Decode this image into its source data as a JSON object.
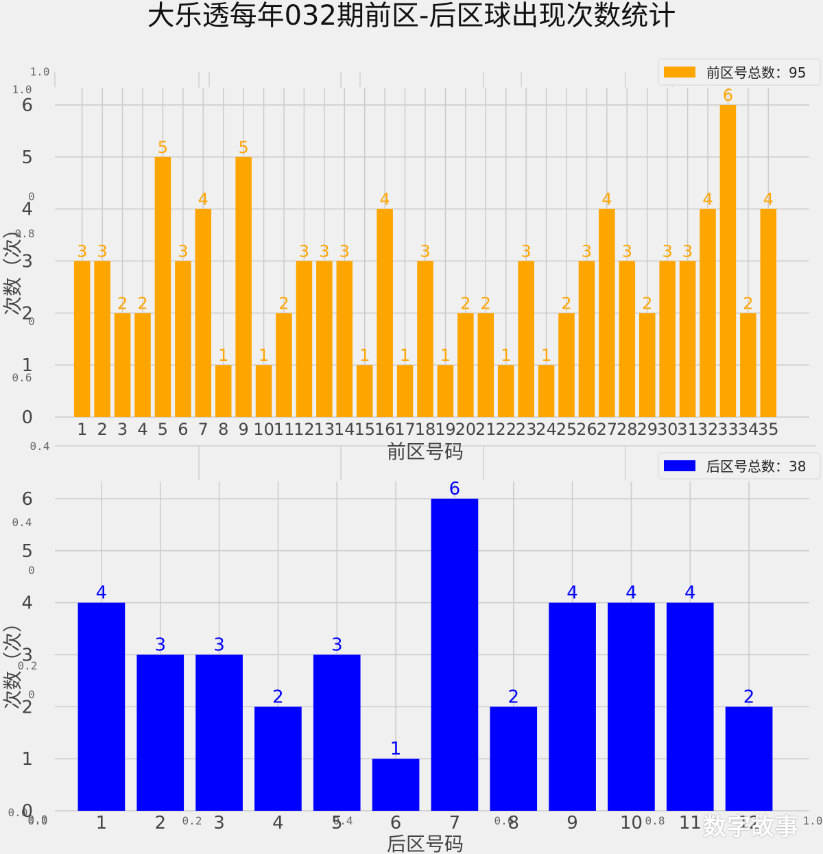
{
  "figure": {
    "title": "大乐透每年032期前区-后区球出现次数统计",
    "watermark": "数字故事",
    "ghost_ticks_x": [
      "0.0",
      "0.2",
      "0.4",
      "0.6",
      "0.8",
      "1.0"
    ],
    "ghost_ticks_y": [
      "1.0",
      "1.0",
      "0",
      "0.8",
      "0",
      "0.6",
      "0.4",
      "0.4",
      "0",
      "0.2",
      "0",
      "0.0",
      "0.0"
    ]
  },
  "chart_data": [
    {
      "type": "bar",
      "title": "",
      "xlabel": "前区号码",
      "ylabel": "次数（次）",
      "categories": [
        "1",
        "2",
        "3",
        "4",
        "5",
        "6",
        "7",
        "8",
        "9",
        "10",
        "11",
        "12",
        "13",
        "14",
        "15",
        "16",
        "17",
        "18",
        "19",
        "20",
        "21",
        "22",
        "23",
        "24",
        "25",
        "26",
        "27",
        "28",
        "29",
        "30",
        "31",
        "32",
        "33",
        "34",
        "35"
      ],
      "series": [
        {
          "name": "前区号总数：95",
          "color": "#FFA500",
          "values": [
            3,
            3,
            2,
            2,
            5,
            3,
            4,
            1,
            5,
            1,
            2,
            3,
            3,
            3,
            1,
            4,
            1,
            3,
            1,
            2,
            2,
            1,
            3,
            1,
            2,
            3,
            4,
            3,
            2,
            3,
            3,
            4,
            6,
            2,
            4
          ]
        }
      ],
      "yticks": [
        0,
        1,
        2,
        3,
        4,
        5,
        6
      ],
      "ylim": [
        0,
        6.3
      ],
      "grid": true,
      "legend": "top-right"
    },
    {
      "type": "bar",
      "title": "",
      "xlabel": "后区号码",
      "ylabel": "次数（次）",
      "categories": [
        "1",
        "2",
        "3",
        "4",
        "5",
        "6",
        "7",
        "8",
        "9",
        "10",
        "11",
        "12"
      ],
      "series": [
        {
          "name": "后区号总数：38",
          "color": "#0000FF",
          "values": [
            4,
            3,
            3,
            2,
            3,
            1,
            6,
            2,
            4,
            4,
            4,
            2
          ]
        }
      ],
      "yticks": [
        0,
        1,
        2,
        3,
        4,
        5,
        6
      ],
      "ylim": [
        0,
        6.3
      ],
      "grid": true,
      "legend": "top-right"
    }
  ]
}
